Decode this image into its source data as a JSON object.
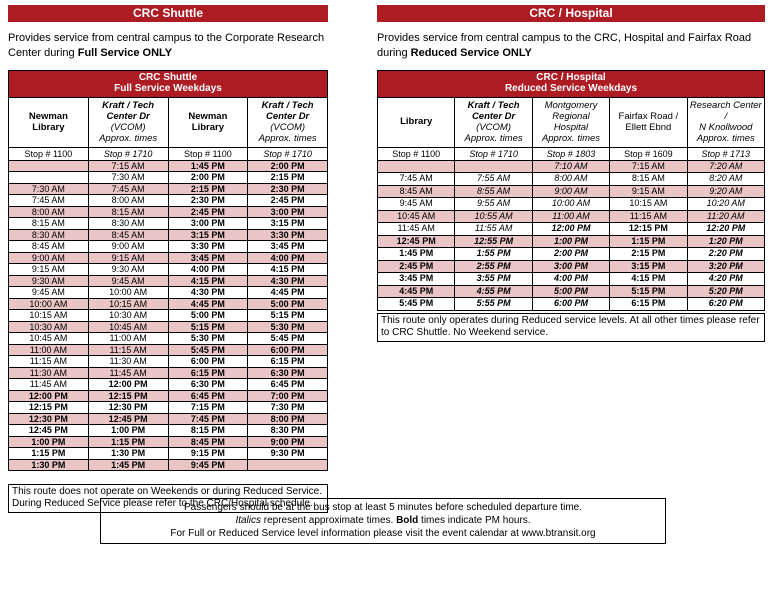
{
  "colors": {
    "accent": "#AE1C23",
    "row_pink": "#EAC5C5"
  },
  "left": {
    "title": "CRC Shuttle",
    "description": {
      "prefix": "Provides service from central campus to the Corporate Research Center during ",
      "bold": "Full Service ONLY"
    },
    "table": {
      "header_line1": "CRC Shuttle",
      "header_line2": "Full Service Weekdays",
      "columns": [
        {
          "lines": [
            {
              "t": "Newman",
              "b": 1
            },
            {
              "t": "Library",
              "b": 1
            }
          ],
          "stop": "Stop # 1100"
        },
        {
          "lines": [
            {
              "t": "Kraft / Tech",
              "b": 1,
              "i": 1
            },
            {
              "t": "Center Dr",
              "b": 1,
              "i": 1
            },
            {
              "t": "(VCOM)",
              "i": 1
            },
            {
              "t": "Approx. times",
              "i": 1
            }
          ],
          "stop": "Stop # 1710",
          "stop_i": 1
        },
        {
          "lines": [
            {
              "t": "Newman",
              "b": 1
            },
            {
              "t": "Library",
              "b": 1
            }
          ],
          "stop": "Stop # 1100"
        },
        {
          "lines": [
            {
              "t": "Kraft / Tech",
              "b": 1,
              "i": 1
            },
            {
              "t": "Center Dr",
              "b": 1,
              "i": 1
            },
            {
              "t": "(VCOM)",
              "i": 1
            },
            {
              "t": "Approx. times",
              "i": 1
            }
          ],
          "stop": "Stop # 1710",
          "stop_i": 1
        }
      ],
      "rows": [
        [
          "",
          "7:15 AM",
          "1:45 PM",
          "2:00 PM"
        ],
        [
          "",
          "7:30 AM",
          "2:00 PM",
          "2:15 PM"
        ],
        [
          "7:30 AM",
          "7:45 AM",
          "2:15 PM",
          "2:30 PM"
        ],
        [
          "7:45 AM",
          "8:00 AM",
          "2:30 PM",
          "2:45 PM"
        ],
        [
          "8:00 AM",
          "8:15 AM",
          "2:45 PM",
          "3:00 PM"
        ],
        [
          "8:15 AM",
          "8:30 AM",
          "3:00 PM",
          "3:15 PM"
        ],
        [
          "8:30 AM",
          "8:45 AM",
          "3:15 PM",
          "3:30 PM"
        ],
        [
          "8:45 AM",
          "9:00 AM",
          "3:30 PM",
          "3:45 PM"
        ],
        [
          "9:00 AM",
          "9:15 AM",
          "3:45 PM",
          "4:00 PM"
        ],
        [
          "9:15 AM",
          "9:30 AM",
          "4:00 PM",
          "4:15 PM"
        ],
        [
          "9:30 AM",
          "9:45 AM",
          "4:15 PM",
          "4:30 PM"
        ],
        [
          "9:45 AM",
          "10:00 AM",
          "4:30 PM",
          "4:45 PM"
        ],
        [
          "10:00 AM",
          "10:15 AM",
          "4:45 PM",
          "5:00 PM"
        ],
        [
          "10:15 AM",
          "10:30 AM",
          "5:00 PM",
          "5:15 PM"
        ],
        [
          "10:30 AM",
          "10:45 AM",
          "5:15 PM",
          "5:30 PM"
        ],
        [
          "10:45 AM",
          "11:00 AM",
          "5:30 PM",
          "5:45 PM"
        ],
        [
          "11:00 AM",
          "11:15 AM",
          "5:45 PM",
          "6:00 PM"
        ],
        [
          "11:15 AM",
          "11:30 AM",
          "6:00 PM",
          "6:15 PM"
        ],
        [
          "11:30 AM",
          "11:45 AM",
          "6:15 PM",
          "6:30 PM"
        ],
        [
          "11:45 AM",
          "12:00 PM",
          "6:30 PM",
          "6:45 PM"
        ],
        [
          "12:00 PM",
          "12:15 PM",
          "6:45 PM",
          "7:00 PM"
        ],
        [
          "12:15 PM",
          "12:30 PM",
          "7:15 PM",
          "7:30 PM"
        ],
        [
          "12:30 PM",
          "12:45 PM",
          "7:45 PM",
          "8:00 PM"
        ],
        [
          "12:45 PM",
          "1:00 PM",
          "8:15 PM",
          "8:30 PM"
        ],
        [
          "1:00 PM",
          "1:15 PM",
          "8:45 PM",
          "9:00 PM"
        ],
        [
          "1:15 PM",
          "1:30 PM",
          "9:15 PM",
          "9:30 PM"
        ],
        [
          "1:30 PM",
          "1:45 PM",
          "9:45 PM",
          ""
        ]
      ]
    },
    "note": "This route does not operate on Weekends or during Reduced Service.  During Reduced Service please refer to the CRC/Hospital schedule."
  },
  "right": {
    "title": "CRC / Hospital",
    "description": {
      "prefix": "Provides service from central campus to the CRC, Hospital and Fairfax Road during ",
      "bold": "Reduced Service ONLY"
    },
    "table": {
      "header_line1": "CRC / Hospital",
      "header_line2": "Reduced Service Weekdays",
      "columns": [
        {
          "lines": [
            {
              "t": "Library",
              "b": 1
            }
          ],
          "stop": "Stop # 1100"
        },
        {
          "lines": [
            {
              "t": "Kraft / Tech",
              "b": 1,
              "i": 1
            },
            {
              "t": "Center Dr",
              "b": 1,
              "i": 1
            },
            {
              "t": "(VCOM)",
              "i": 1
            },
            {
              "t": "Approx. times",
              "i": 1
            }
          ],
          "stop": "Stop # 1710",
          "stop_i": 1,
          "times_i": 1
        },
        {
          "lines": [
            {
              "t": "Montgomery",
              "i": 1
            },
            {
              "t": "Regional Hospital",
              "i": 1
            },
            {
              "t": "Approx. times",
              "i": 1
            }
          ],
          "stop": "Stop # 1803",
          "stop_i": 1,
          "times_i": 1
        },
        {
          "lines": [
            {
              "t": "Fairfax Road /"
            },
            {
              "t": "Ellett Ebnd"
            }
          ],
          "stop": "Stop # 1609"
        },
        {
          "lines": [
            {
              "t": "Research Center /",
              "i": 1
            },
            {
              "t": "N Knollwood",
              "i": 1
            },
            {
              "t": "Approx. times",
              "i": 1
            }
          ],
          "stop": "Stop # 1713",
          "stop_i": 1,
          "times_i": 1
        }
      ],
      "rows": [
        [
          "",
          "",
          "7:10 AM",
          "7:15 AM",
          "7:20 AM"
        ],
        [
          "7:45 AM",
          "7:55 AM",
          "8:00 AM",
          "8:15 AM",
          "8:20 AM"
        ],
        [
          "8:45 AM",
          "8:55 AM",
          "9:00 AM",
          "9:15 AM",
          "9:20 AM"
        ],
        [
          "9:45 AM",
          "9:55 AM",
          "10:00 AM",
          "10:15 AM",
          "10:20 AM"
        ],
        [
          "10:45 AM",
          "10:55 AM",
          "11:00 AM",
          "11:15 AM",
          "11:20 AM"
        ],
        [
          "11:45 AM",
          "11:55 AM",
          "12:00 PM",
          "12:15 PM",
          "12:20 PM"
        ],
        [
          "12:45 PM",
          "12:55 PM",
          "1:00 PM",
          "1:15 PM",
          "1:20 PM"
        ],
        [
          "1:45 PM",
          "1:55 PM",
          "2:00 PM",
          "2:15 PM",
          "2:20 PM"
        ],
        [
          "2:45 PM",
          "2:55 PM",
          "3:00 PM",
          "3:15 PM",
          "3:20 PM"
        ],
        [
          "3:45 PM",
          "3:55 PM",
          "4:00 PM",
          "4:15 PM",
          "4:20 PM"
        ],
        [
          "4:45 PM",
          "4:55 PM",
          "5:00 PM",
          "5:15 PM",
          "5:20 PM"
        ],
        [
          "5:45 PM",
          "5:55 PM",
          "6:00 PM",
          "6:15 PM",
          "6:20 PM"
        ]
      ]
    },
    "note": "This route only operates during Reduced service levels.  At all other times please refer to CRC Shuttle.  No Weekend service."
  },
  "footer": {
    "line1": "Passengers should be at the bus stop at least 5 minutes before scheduled departure time.",
    "line2_italic": "Italics",
    "line2_mid": " represent approximate times.  ",
    "line2_bold": "Bold",
    "line2_end": " times indicate PM hours.",
    "line3": "For Full or Reduced Service level information please visit the event calendar at www.btransit.org"
  }
}
